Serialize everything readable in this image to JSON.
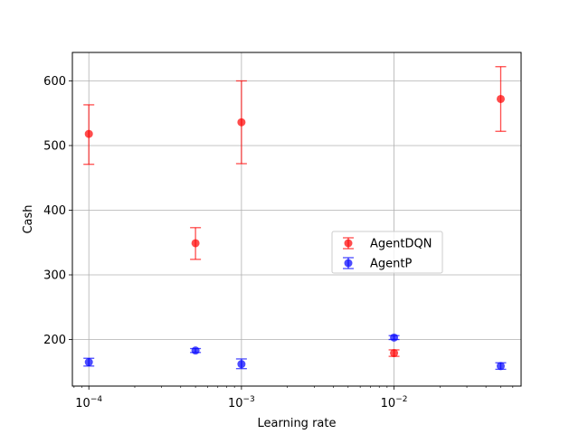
{
  "chart_data": {
    "type": "scatter",
    "title": "",
    "xlabel": "Learning rate",
    "ylabel": "Cash",
    "xscale": "log",
    "xlim": [
      7.8e-05,
      0.068
    ],
    "ylim": [
      128,
      644
    ],
    "x_ticks": [
      0.0001,
      0.001,
      0.01
    ],
    "x_tick_labels": [
      {
        "base": "10",
        "exp": "−4"
      },
      {
        "base": "10",
        "exp": "−3"
      },
      {
        "base": "10",
        "exp": "−2"
      }
    ],
    "y_ticks": [
      200,
      300,
      400,
      500,
      600
    ],
    "grid": true,
    "legend_position": "center-right",
    "series": [
      {
        "name": "AgentDQN",
        "color": "#ff0000",
        "points": [
          {
            "x": 0.0001,
            "y": 518,
            "yerr_low": 471,
            "yerr_high": 563
          },
          {
            "x": 0.0005,
            "y": 349,
            "yerr_low": 324,
            "yerr_high": 373
          },
          {
            "x": 0.001,
            "y": 536,
            "yerr_low": 472,
            "yerr_high": 600
          },
          {
            "x": 0.01,
            "y": 179,
            "yerr_low": 174,
            "yerr_high": 184
          },
          {
            "x": 0.05,
            "y": 572,
            "yerr_low": 522,
            "yerr_high": 622
          }
        ]
      },
      {
        "name": "AgentP",
        "color": "#0000ff",
        "points": [
          {
            "x": 0.0001,
            "y": 165,
            "yerr_low": 159,
            "yerr_high": 171
          },
          {
            "x": 0.0005,
            "y": 183,
            "yerr_low": 180,
            "yerr_high": 186
          },
          {
            "x": 0.001,
            "y": 162,
            "yerr_low": 155,
            "yerr_high": 170
          },
          {
            "x": 0.01,
            "y": 203,
            "yerr_low": 200,
            "yerr_high": 206
          },
          {
            "x": 0.05,
            "y": 159,
            "yerr_low": 154,
            "yerr_high": 164
          }
        ]
      }
    ]
  }
}
